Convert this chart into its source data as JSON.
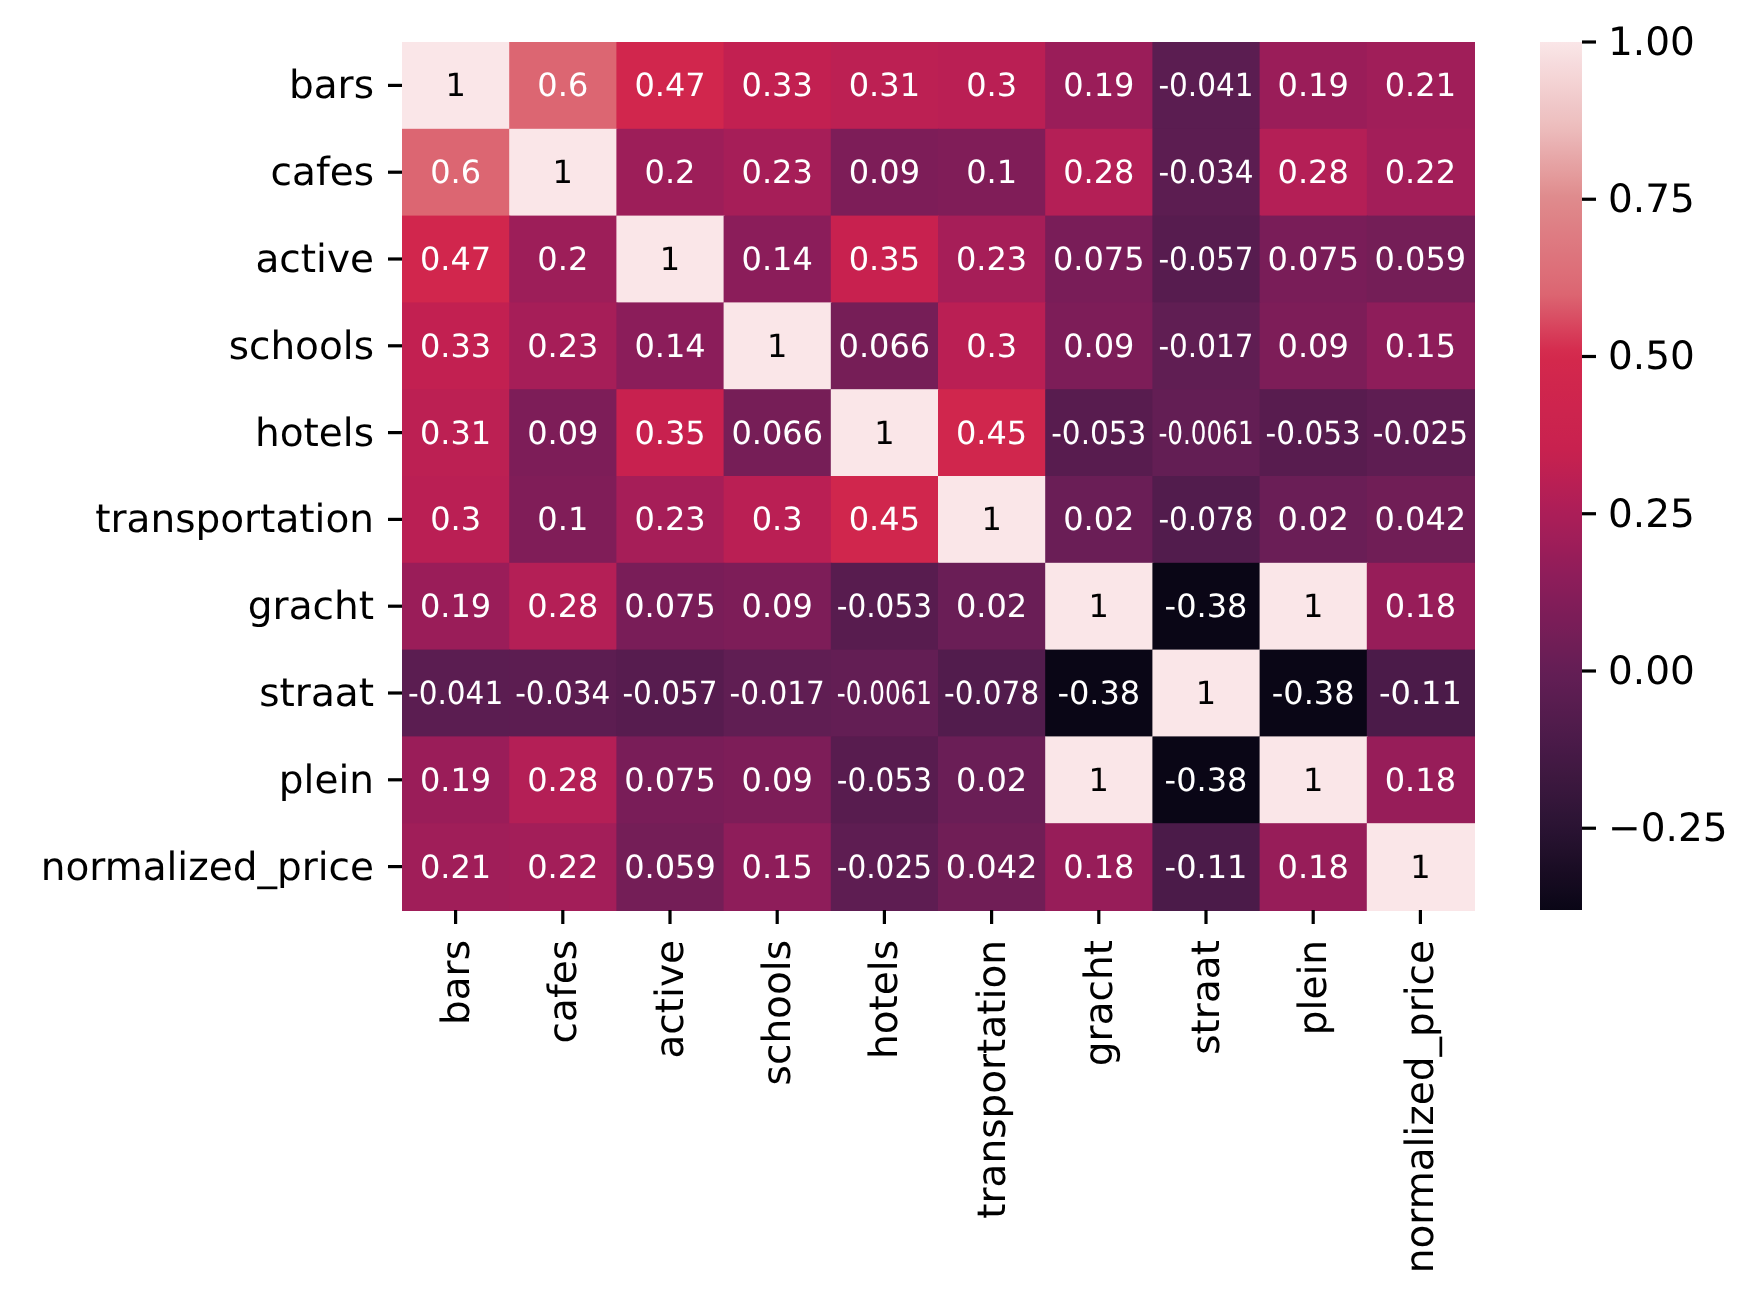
{
  "chart_data": {
    "type": "heatmap",
    "categories": [
      "bars",
      "cafes",
      "active",
      "schools",
      "hotels",
      "transportation",
      "gracht",
      "straat",
      "plein",
      "normalized_price"
    ],
    "y_categories": [
      "bars",
      "cafes",
      "active",
      "schools",
      "hotels",
      "transportation",
      "gracht",
      "straat",
      "plein",
      "normalized_price"
    ],
    "cells": [
      [
        1,
        0.6,
        0.47,
        0.33,
        0.31,
        0.3,
        0.19,
        -0.041,
        0.19,
        0.21
      ],
      [
        0.6,
        1,
        0.2,
        0.23,
        0.09,
        0.1,
        0.28,
        -0.034,
        0.28,
        0.22
      ],
      [
        0.47,
        0.2,
        1,
        0.14,
        0.35,
        0.23,
        0.075,
        -0.057,
        0.075,
        0.059
      ],
      [
        0.33,
        0.23,
        0.14,
        1,
        0.066,
        0.3,
        0.09,
        -0.017,
        0.09,
        0.15
      ],
      [
        0.31,
        0.09,
        0.35,
        0.066,
        1,
        0.45,
        -0.053,
        -0.0061,
        -0.053,
        -0.025
      ],
      [
        0.3,
        0.1,
        0.23,
        0.3,
        0.45,
        1,
        0.02,
        -0.078,
        0.02,
        0.042
      ],
      [
        0.19,
        0.28,
        0.075,
        0.09,
        -0.053,
        0.02,
        1,
        -0.38,
        1,
        0.18
      ],
      [
        -0.041,
        -0.034,
        -0.057,
        -0.017,
        -0.0061,
        -0.078,
        -0.38,
        1,
        -0.38,
        -0.11
      ],
      [
        0.19,
        0.28,
        0.075,
        0.09,
        -0.053,
        0.02,
        1,
        -0.38,
        1,
        0.18
      ],
      [
        0.21,
        0.22,
        0.059,
        0.15,
        -0.025,
        0.042,
        0.18,
        -0.11,
        0.18,
        1
      ]
    ],
    "clim": [
      -0.38,
      1
    ],
    "cticks": [
      {
        "value": 1,
        "label": "1.00"
      },
      {
        "value": 0.75,
        "label": "0.75"
      },
      {
        "value": 0.5,
        "label": "0.50"
      },
      {
        "value": 0.25,
        "label": "0.25"
      },
      {
        "value": 0,
        "label": "0.00"
      },
      {
        "value": -0.25,
        "label": "−0.25"
      }
    ],
    "data_labels": true
  }
}
